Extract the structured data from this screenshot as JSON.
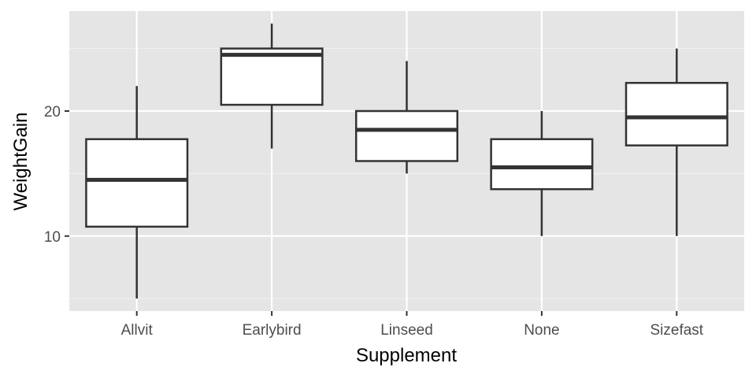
{
  "chart_data": {
    "type": "boxplot",
    "xlabel": "Supplement",
    "ylabel": "WeightGain",
    "ylim": [
      4,
      28
    ],
    "yticks": [
      10,
      20
    ],
    "yminor": [
      5,
      15,
      25
    ],
    "grid": true,
    "legend": "none",
    "panel_background": "#e5e5e5",
    "categories": [
      "Allvit",
      "Earlybird",
      "Linseed",
      "None",
      "Sizefast"
    ],
    "boxes": [
      {
        "category": "Allvit",
        "min": 5,
        "q1": 10.75,
        "median": 14.5,
        "q3": 17.75,
        "max": 22
      },
      {
        "category": "Earlybird",
        "min": 17,
        "q1": 20.5,
        "median": 24.5,
        "q3": 25,
        "max": 27
      },
      {
        "category": "Linseed",
        "min": 15,
        "q1": 16,
        "median": 18.5,
        "q3": 20,
        "max": 24
      },
      {
        "category": "None",
        "min": 10,
        "q1": 13.75,
        "median": 15.5,
        "q3": 17.75,
        "max": 20
      },
      {
        "category": "Sizefast",
        "min": 10,
        "q1": 17.25,
        "median": 19.5,
        "q3": 22.25,
        "max": 25
      }
    ]
  }
}
